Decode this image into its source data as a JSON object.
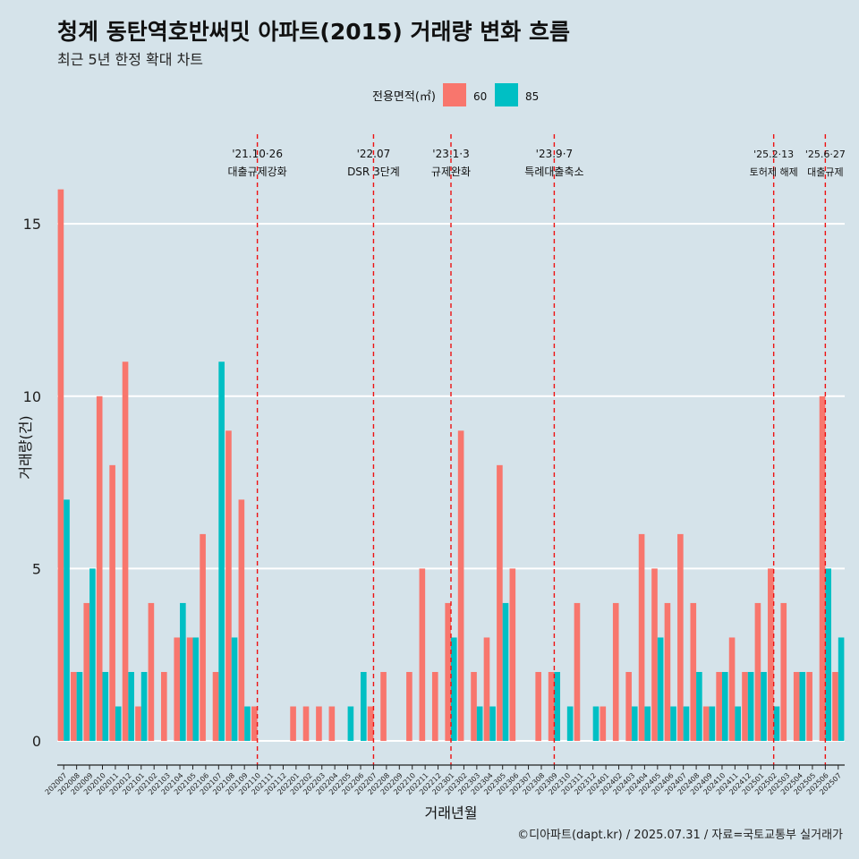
{
  "title": "청계 동탄역호반써밋 아파트(2015) 거래량 변화 흐름",
  "subtitle": "최근 5년 한정 확대 차트",
  "footer": "©디아파트(dapt.kr) / 2025.07.31 / 자료=국토교통부 실거래가",
  "chart_data": {
    "type": "bar",
    "xlabel": "거래년월",
    "ylabel": "거래량(건)",
    "ylim": [
      -0.7,
      17.6
    ],
    "yticks": [
      0,
      5,
      10,
      15
    ],
    "legend": {
      "title": "전용면적(㎡)",
      "position": "top",
      "entries": [
        {
          "name": "60",
          "color": "#f8766d"
        },
        {
          "name": "85",
          "color": "#00bfc4"
        }
      ]
    },
    "categories": [
      "202007",
      "202008",
      "202009",
      "202010",
      "202011",
      "202012",
      "202101",
      "202102",
      "202103",
      "202104",
      "202105",
      "202106",
      "202107",
      "202108",
      "202109",
      "202110",
      "202111",
      "202112",
      "202201",
      "202202",
      "202203",
      "202204",
      "202205",
      "202206",
      "202207",
      "202208",
      "202209",
      "202210",
      "202211",
      "202212",
      "202301",
      "202302",
      "202303",
      "202304",
      "202305",
      "202306",
      "202307",
      "202308",
      "202309",
      "202310",
      "202311",
      "202312",
      "202401",
      "202402",
      "202403",
      "202404",
      "202405",
      "202406",
      "202407",
      "202408",
      "202409",
      "202410",
      "202411",
      "202412",
      "202501",
      "202502",
      "202503",
      "202504",
      "202505",
      "202506",
      "202507"
    ],
    "series": [
      {
        "name": "60",
        "color": "#f8766d",
        "values": [
          16,
          2,
          4,
          10,
          8,
          11,
          1,
          4,
          2,
          3,
          3,
          6,
          2,
          9,
          7,
          1,
          0,
          0,
          1,
          1,
          1,
          1,
          0,
          0,
          1,
          2,
          0,
          2,
          5,
          2,
          4,
          9,
          2,
          3,
          8,
          5,
          0,
          2,
          2,
          0,
          4,
          0,
          1,
          4,
          2,
          6,
          5,
          4,
          6,
          4,
          1,
          2,
          3,
          2,
          4,
          5,
          4,
          2,
          2,
          10,
          2
        ]
      },
      {
        "name": "85",
        "color": "#00bfc4",
        "values": [
          7,
          2,
          5,
          2,
          1,
          2,
          2,
          0,
          0,
          4,
          3,
          0,
          11,
          3,
          1,
          0,
          0,
          0,
          0,
          0,
          0,
          0,
          1,
          2,
          0,
          0,
          0,
          0,
          0,
          0,
          3,
          0,
          1,
          1,
          4,
          0,
          0,
          0,
          2,
          1,
          0,
          1,
          0,
          0,
          1,
          1,
          3,
          1,
          1,
          2,
          1,
          2,
          1,
          2,
          2,
          1,
          0,
          2,
          0,
          5,
          3
        ]
      }
    ],
    "annotations": [
      {
        "category": "202110",
        "date": "'21.10·26",
        "label": "대출규제강화"
      },
      {
        "category": "202207",
        "date": "'22.07",
        "label": "DSR 3단계"
      },
      {
        "category": "202301",
        "date": "'23.1·3",
        "label": "규제완화"
      },
      {
        "category": "202309",
        "date": "'23.9·7",
        "label": "특례대출축소"
      },
      {
        "category": "202502",
        "date": "'25.2·13",
        "label": "토허제 해제"
      },
      {
        "category": "202506",
        "date": "'25.6·27",
        "label": "대출규제"
      }
    ]
  }
}
